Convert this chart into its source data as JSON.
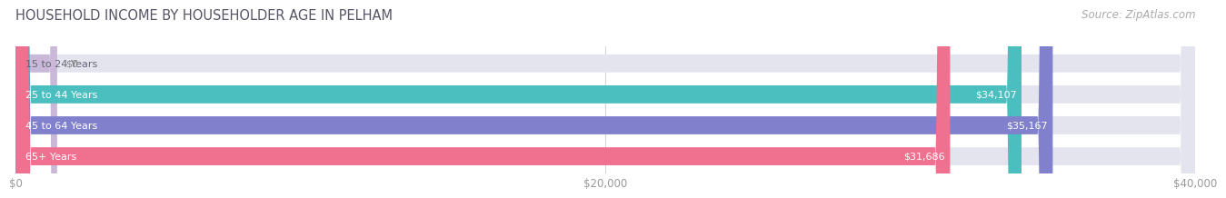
{
  "title": "HOUSEHOLD INCOME BY HOUSEHOLDER AGE IN PELHAM",
  "source": "Source: ZipAtlas.com",
  "categories": [
    "15 to 24 Years",
    "25 to 44 Years",
    "45 to 64 Years",
    "65+ Years"
  ],
  "values": [
    0,
    34107,
    35167,
    31686
  ],
  "bar_colors": [
    "#c9b8d8",
    "#4bbfbf",
    "#8080cc",
    "#f07090"
  ],
  "bar_bg_color": "#e4e4ee",
  "value_labels": [
    "$0",
    "$34,107",
    "$35,167",
    "$31,686"
  ],
  "xlim": [
    0,
    40000
  ],
  "xticks": [
    0,
    20000,
    40000
  ],
  "xtick_labels": [
    "$0",
    "$20,000",
    "$40,000"
  ],
  "title_color": "#555566",
  "source_color": "#aaaaaa",
  "background_color": "#ffffff",
  "title_fontsize": 10.5,
  "source_fontsize": 8.5,
  "bar_label_fontsize": 8.0,
  "value_label_fontsize": 8.0,
  "xtick_fontsize": 8.5,
  "bar_height": 0.58,
  "bar_gap": 1.0
}
